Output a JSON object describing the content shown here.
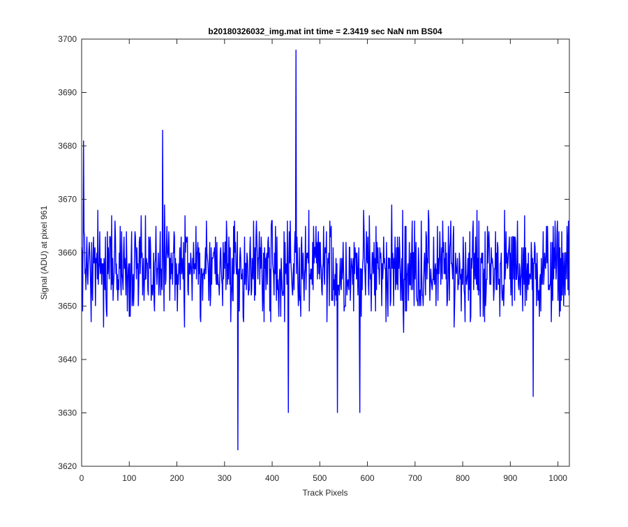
{
  "chart_data": {
    "type": "line",
    "title": "b20180326032_img.mat int time = 2.3419 sec  NaN nm BS04",
    "xlabel": "Track Pixels",
    "ylabel": "Signal (ADU) at pixel 961",
    "xlim": [
      0,
      1024
    ],
    "ylim": [
      3620,
      3700
    ],
    "xticks": [
      0,
      100,
      200,
      300,
      400,
      500,
      600,
      700,
      800,
      900,
      1000
    ],
    "yticks": [
      3620,
      3630,
      3640,
      3650,
      3660,
      3670,
      3680,
      3690,
      3700
    ],
    "xtick_labels": [
      "0",
      "100",
      "200",
      "300",
      "400",
      "500",
      "600",
      "700",
      "800",
      "900",
      "1000"
    ],
    "ytick_labels": [
      "3620",
      "3630",
      "3640",
      "3650",
      "3660",
      "3670",
      "3680",
      "3690",
      "3700"
    ],
    "grid": false,
    "box": true,
    "line_color": "#0000ff",
    "series": [
      {
        "noise": {
          "n_points": 1024,
          "baseline": 3656,
          "typical_range": [
            3643,
            3671
          ]
        },
        "notable_points": [
          {
            "x": 4,
            "y": 3681
          },
          {
            "x": 170,
            "y": 3683
          },
          {
            "x": 328,
            "y": 3623
          },
          {
            "x": 434,
            "y": 3630
          },
          {
            "x": 450,
            "y": 3698
          },
          {
            "x": 537,
            "y": 3630
          },
          {
            "x": 584,
            "y": 3630
          },
          {
            "x": 948,
            "y": 3633
          }
        ]
      }
    ]
  }
}
